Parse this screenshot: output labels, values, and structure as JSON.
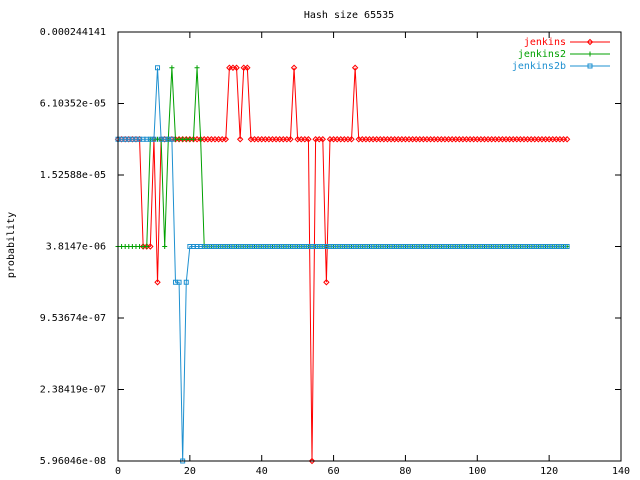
{
  "chart_data": {
    "type": "line",
    "title": "Hash size 65535",
    "xlabel": "",
    "ylabel": "probability",
    "x_scale": "linear",
    "y_scale": "log",
    "xlim": [
      0,
      140
    ],
    "x_ticks": [
      0,
      20,
      40,
      60,
      80,
      100,
      120,
      140
    ],
    "y_ticks": [
      {
        "value": 0.000244141,
        "label": "0.000244141"
      },
      {
        "value": 6.10352e-05,
        "label": "6.10352e-05"
      },
      {
        "value": 1.52588e-05,
        "label": "1.52588e-05"
      },
      {
        "value": 3.8147e-06,
        "label": "3.8147e-06"
      },
      {
        "value": 9.53674e-07,
        "label": "9.53674e-07"
      },
      {
        "value": 2.38419e-07,
        "label": "2.38419e-07"
      },
      {
        "value": 5.96046e-08,
        "label": "5.96046e-08"
      }
    ],
    "ylim": [
      5.96046e-08,
      0.000244141
    ],
    "grid": false,
    "legend_position": "top-right",
    "x": [
      0,
      1,
      2,
      3,
      4,
      5,
      6,
      7,
      8,
      9,
      10,
      11,
      12,
      13,
      14,
      15,
      16,
      17,
      18,
      19,
      20,
      21,
      22,
      23,
      24,
      25,
      26,
      27,
      28,
      29,
      30,
      31,
      32,
      33,
      34,
      35,
      36,
      37,
      38,
      39,
      40,
      41,
      42,
      43,
      44,
      45,
      46,
      47,
      48,
      49,
      50,
      51,
      52,
      53,
      54,
      55,
      56,
      57,
      58,
      59,
      60,
      61,
      62,
      63,
      64,
      65,
      66,
      67,
      68,
      69,
      70,
      71,
      72,
      73,
      74,
      75,
      76,
      77,
      78,
      79,
      80,
      81,
      82,
      83,
      84,
      85,
      86,
      87,
      88,
      89,
      90,
      91,
      92,
      93,
      94,
      95,
      96,
      97,
      98,
      99,
      100,
      101,
      102,
      103,
      104,
      105,
      106,
      107,
      108,
      109,
      110,
      111,
      112,
      113,
      114,
      115,
      116,
      117,
      118,
      119,
      120,
      121,
      122,
      123,
      124,
      125
    ],
    "series": [
      {
        "name": "jenkins",
        "color": "#ff0000",
        "marker": "diamond",
        "values": [
          3.05176e-05,
          3.05176e-05,
          3.05176e-05,
          3.05176e-05,
          3.05176e-05,
          3.05176e-05,
          3.05176e-05,
          3.8147e-06,
          3.8147e-06,
          3.8147e-06,
          3.05176e-05,
          1.90735e-06,
          3.05176e-05,
          3.05176e-05,
          3.05176e-05,
          3.05176e-05,
          3.05176e-05,
          3.05176e-05,
          3.05176e-05,
          3.05176e-05,
          3.05176e-05,
          3.05176e-05,
          3.05176e-05,
          3.05176e-05,
          3.05176e-05,
          3.05176e-05,
          3.05176e-05,
          3.05176e-05,
          3.05176e-05,
          3.05176e-05,
          3.05176e-05,
          0.00012207,
          0.00012207,
          0.00012207,
          3.05176e-05,
          0.00012207,
          0.00012207,
          3.05176e-05,
          3.05176e-05,
          3.05176e-05,
          3.05176e-05,
          3.05176e-05,
          3.05176e-05,
          3.05176e-05,
          3.05176e-05,
          3.05176e-05,
          3.05176e-05,
          3.05176e-05,
          3.05176e-05,
          0.00012207,
          3.05176e-05,
          3.05176e-05,
          3.05176e-05,
          3.05176e-05,
          5.96046e-08,
          3.05176e-05,
          3.05176e-05,
          3.05176e-05,
          1.90735e-06,
          3.05176e-05,
          3.05176e-05,
          3.05176e-05,
          3.05176e-05,
          3.05176e-05,
          3.05176e-05,
          3.05176e-05,
          0.00012207,
          3.05176e-05,
          3.05176e-05,
          3.05176e-05,
          3.05176e-05,
          3.05176e-05,
          3.05176e-05,
          3.05176e-05,
          3.05176e-05,
          3.05176e-05,
          3.05176e-05,
          3.05176e-05,
          3.05176e-05,
          3.05176e-05,
          3.05176e-05,
          3.05176e-05,
          3.05176e-05,
          3.05176e-05,
          3.05176e-05,
          3.05176e-05,
          3.05176e-05,
          3.05176e-05,
          3.05176e-05,
          3.05176e-05,
          3.05176e-05,
          3.05176e-05,
          3.05176e-05,
          3.05176e-05,
          3.05176e-05,
          3.05176e-05,
          3.05176e-05,
          3.05176e-05,
          3.05176e-05,
          3.05176e-05,
          3.05176e-05,
          3.05176e-05,
          3.05176e-05,
          3.05176e-05,
          3.05176e-05,
          3.05176e-05,
          3.05176e-05,
          3.05176e-05,
          3.05176e-05,
          3.05176e-05,
          3.05176e-05,
          3.05176e-05,
          3.05176e-05,
          3.05176e-05,
          3.05176e-05,
          3.05176e-05,
          3.05176e-05,
          3.05176e-05,
          3.05176e-05,
          3.05176e-05,
          3.05176e-05,
          3.05176e-05,
          3.05176e-05,
          3.05176e-05,
          3.05176e-05,
          3.05176e-05
        ]
      },
      {
        "name": "jenkins2",
        "color": "#00a000",
        "marker": "plus",
        "values": [
          3.8147e-06,
          3.8147e-06,
          3.8147e-06,
          3.8147e-06,
          3.8147e-06,
          3.8147e-06,
          3.8147e-06,
          3.8147e-06,
          3.8147e-06,
          3.05176e-05,
          3.05176e-05,
          3.05176e-05,
          3.05176e-05,
          3.8147e-06,
          3.05176e-05,
          0.00012207,
          3.05176e-05,
          3.05176e-05,
          3.05176e-05,
          3.05176e-05,
          3.05176e-05,
          3.05176e-05,
          0.00012207,
          3.05176e-05,
          3.8147e-06,
          3.8147e-06,
          3.8147e-06,
          3.8147e-06,
          3.8147e-06,
          3.8147e-06,
          3.8147e-06,
          3.8147e-06,
          3.8147e-06,
          3.8147e-06,
          3.8147e-06,
          3.8147e-06,
          3.8147e-06,
          3.8147e-06,
          3.8147e-06,
          3.8147e-06,
          3.8147e-06,
          3.8147e-06,
          3.8147e-06,
          3.8147e-06,
          3.8147e-06,
          3.8147e-06,
          3.8147e-06,
          3.8147e-06,
          3.8147e-06,
          3.8147e-06,
          3.8147e-06,
          3.8147e-06,
          3.8147e-06,
          3.8147e-06,
          3.8147e-06,
          3.8147e-06,
          3.8147e-06,
          3.8147e-06,
          3.8147e-06,
          3.8147e-06,
          3.8147e-06,
          3.8147e-06,
          3.8147e-06,
          3.8147e-06,
          3.8147e-06,
          3.8147e-06,
          3.8147e-06,
          3.8147e-06,
          3.8147e-06,
          3.8147e-06,
          3.8147e-06,
          3.8147e-06,
          3.8147e-06,
          3.8147e-06,
          3.8147e-06,
          3.8147e-06,
          3.8147e-06,
          3.8147e-06,
          3.8147e-06,
          3.8147e-06,
          3.8147e-06,
          3.8147e-06,
          3.8147e-06,
          3.8147e-06,
          3.8147e-06,
          3.8147e-06,
          3.8147e-06,
          3.8147e-06,
          3.8147e-06,
          3.8147e-06,
          3.8147e-06,
          3.8147e-06,
          3.8147e-06,
          3.8147e-06,
          3.8147e-06,
          3.8147e-06,
          3.8147e-06,
          3.8147e-06,
          3.8147e-06,
          3.8147e-06,
          3.8147e-06,
          3.8147e-06,
          3.8147e-06,
          3.8147e-06,
          3.8147e-06,
          3.8147e-06,
          3.8147e-06,
          3.8147e-06,
          3.8147e-06,
          3.8147e-06,
          3.8147e-06,
          3.8147e-06,
          3.8147e-06,
          3.8147e-06,
          3.8147e-06,
          3.8147e-06,
          3.8147e-06,
          3.8147e-06,
          3.8147e-06,
          3.8147e-06,
          3.8147e-06,
          3.8147e-06,
          3.8147e-06,
          3.8147e-06,
          3.8147e-06,
          3.8147e-06
        ]
      },
      {
        "name": "jenkins2b",
        "color": "#1e90d0",
        "marker": "square",
        "values": [
          3.05176e-05,
          3.05176e-05,
          3.05176e-05,
          3.05176e-05,
          3.05176e-05,
          3.05176e-05,
          3.05176e-05,
          3.05176e-05,
          3.05176e-05,
          3.05176e-05,
          3.05176e-05,
          0.00012207,
          3.05176e-05,
          3.05176e-05,
          3.05176e-05,
          3.05176e-05,
          1.90735e-06,
          1.90735e-06,
          5.96046e-08,
          1.90735e-06,
          3.8147e-06,
          3.8147e-06,
          3.8147e-06,
          3.8147e-06,
          3.8147e-06,
          3.8147e-06,
          3.8147e-06,
          3.8147e-06,
          3.8147e-06,
          3.8147e-06,
          3.8147e-06,
          3.8147e-06,
          3.8147e-06,
          3.8147e-06,
          3.8147e-06,
          3.8147e-06,
          3.8147e-06,
          3.8147e-06,
          3.8147e-06,
          3.8147e-06,
          3.8147e-06,
          3.8147e-06,
          3.8147e-06,
          3.8147e-06,
          3.8147e-06,
          3.8147e-06,
          3.8147e-06,
          3.8147e-06,
          3.8147e-06,
          3.8147e-06,
          3.8147e-06,
          3.8147e-06,
          3.8147e-06,
          3.8147e-06,
          3.8147e-06,
          3.8147e-06,
          3.8147e-06,
          3.8147e-06,
          3.8147e-06,
          3.8147e-06,
          3.8147e-06,
          3.8147e-06,
          3.8147e-06,
          3.8147e-06,
          3.8147e-06,
          3.8147e-06,
          3.8147e-06,
          3.8147e-06,
          3.8147e-06,
          3.8147e-06,
          3.8147e-06,
          3.8147e-06,
          3.8147e-06,
          3.8147e-06,
          3.8147e-06,
          3.8147e-06,
          3.8147e-06,
          3.8147e-06,
          3.8147e-06,
          3.8147e-06,
          3.8147e-06,
          3.8147e-06,
          3.8147e-06,
          3.8147e-06,
          3.8147e-06,
          3.8147e-06,
          3.8147e-06,
          3.8147e-06,
          3.8147e-06,
          3.8147e-06,
          3.8147e-06,
          3.8147e-06,
          3.8147e-06,
          3.8147e-06,
          3.8147e-06,
          3.8147e-06,
          3.8147e-06,
          3.8147e-06,
          3.8147e-06,
          3.8147e-06,
          3.8147e-06,
          3.8147e-06,
          3.8147e-06,
          3.8147e-06,
          3.8147e-06,
          3.8147e-06,
          3.8147e-06,
          3.8147e-06,
          3.8147e-06,
          3.8147e-06,
          3.8147e-06,
          3.8147e-06,
          3.8147e-06,
          3.8147e-06,
          3.8147e-06,
          3.8147e-06,
          3.8147e-06,
          3.8147e-06,
          3.8147e-06,
          3.8147e-06,
          3.8147e-06,
          3.8147e-06,
          3.8147e-06,
          3.8147e-06,
          3.8147e-06,
          3.8147e-06
        ]
      }
    ]
  }
}
